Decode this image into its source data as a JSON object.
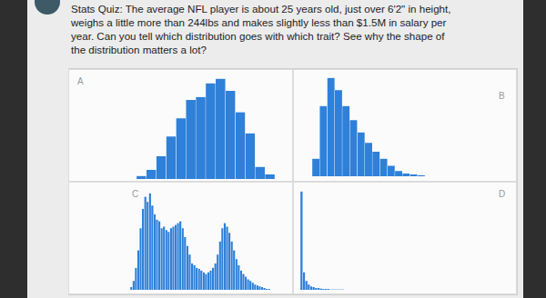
{
  "text": [
    "Stats Quiz: The average NFL player is about 25 years old, just over 6'2\" in height,",
    "weighs a little more than 244lbs and makes slightly less than $1.5M in salary per",
    "year. Can you tell which distribution goes with which trait? See why the shape of",
    "the distribution matters a lot?"
  ],
  "chart_data": [
    {
      "type": "bar",
      "title": "A",
      "color": "#2f80d8",
      "tick_labels": false,
      "grid": false,
      "values": [
        2,
        6,
        15,
        28,
        40,
        52,
        54,
        63,
        66,
        58,
        44,
        30,
        8,
        3
      ]
    },
    {
      "type": "bar",
      "title": "B",
      "color": "#2f80d8",
      "tick_labels": false,
      "grid": false,
      "values": [
        20,
        80,
        112,
        98,
        80,
        64,
        50,
        38,
        28,
        20,
        12,
        6,
        3,
        2,
        1
      ]
    },
    {
      "type": "bar",
      "title": "C",
      "color": "#2f80d8",
      "tick_labels": false,
      "grid": false,
      "values": [
        3,
        10,
        25,
        45,
        70,
        92,
        106,
        100,
        110,
        96,
        86,
        80,
        78,
        70,
        72,
        68,
        66,
        70,
        72,
        74,
        76,
        78,
        70,
        60,
        50,
        40,
        30,
        28,
        25,
        24,
        22,
        20,
        18,
        20,
        22,
        25,
        30,
        40,
        55,
        70,
        76,
        72,
        65,
        55,
        45,
        35,
        28,
        22,
        18,
        15,
        12,
        10,
        8,
        6,
        5,
        4,
        3,
        2,
        1,
        1
      ]
    },
    {
      "type": "bar",
      "title": "D",
      "color": "#2f80d8",
      "tick_labels": false,
      "grid": false,
      "values": [
        112,
        20,
        10,
        6,
        4,
        3,
        2,
        2,
        1.5,
        1,
        1,
        1,
        0.5,
        0.5,
        0.5,
        0.5,
        0.5,
        0.5
      ]
    }
  ]
}
